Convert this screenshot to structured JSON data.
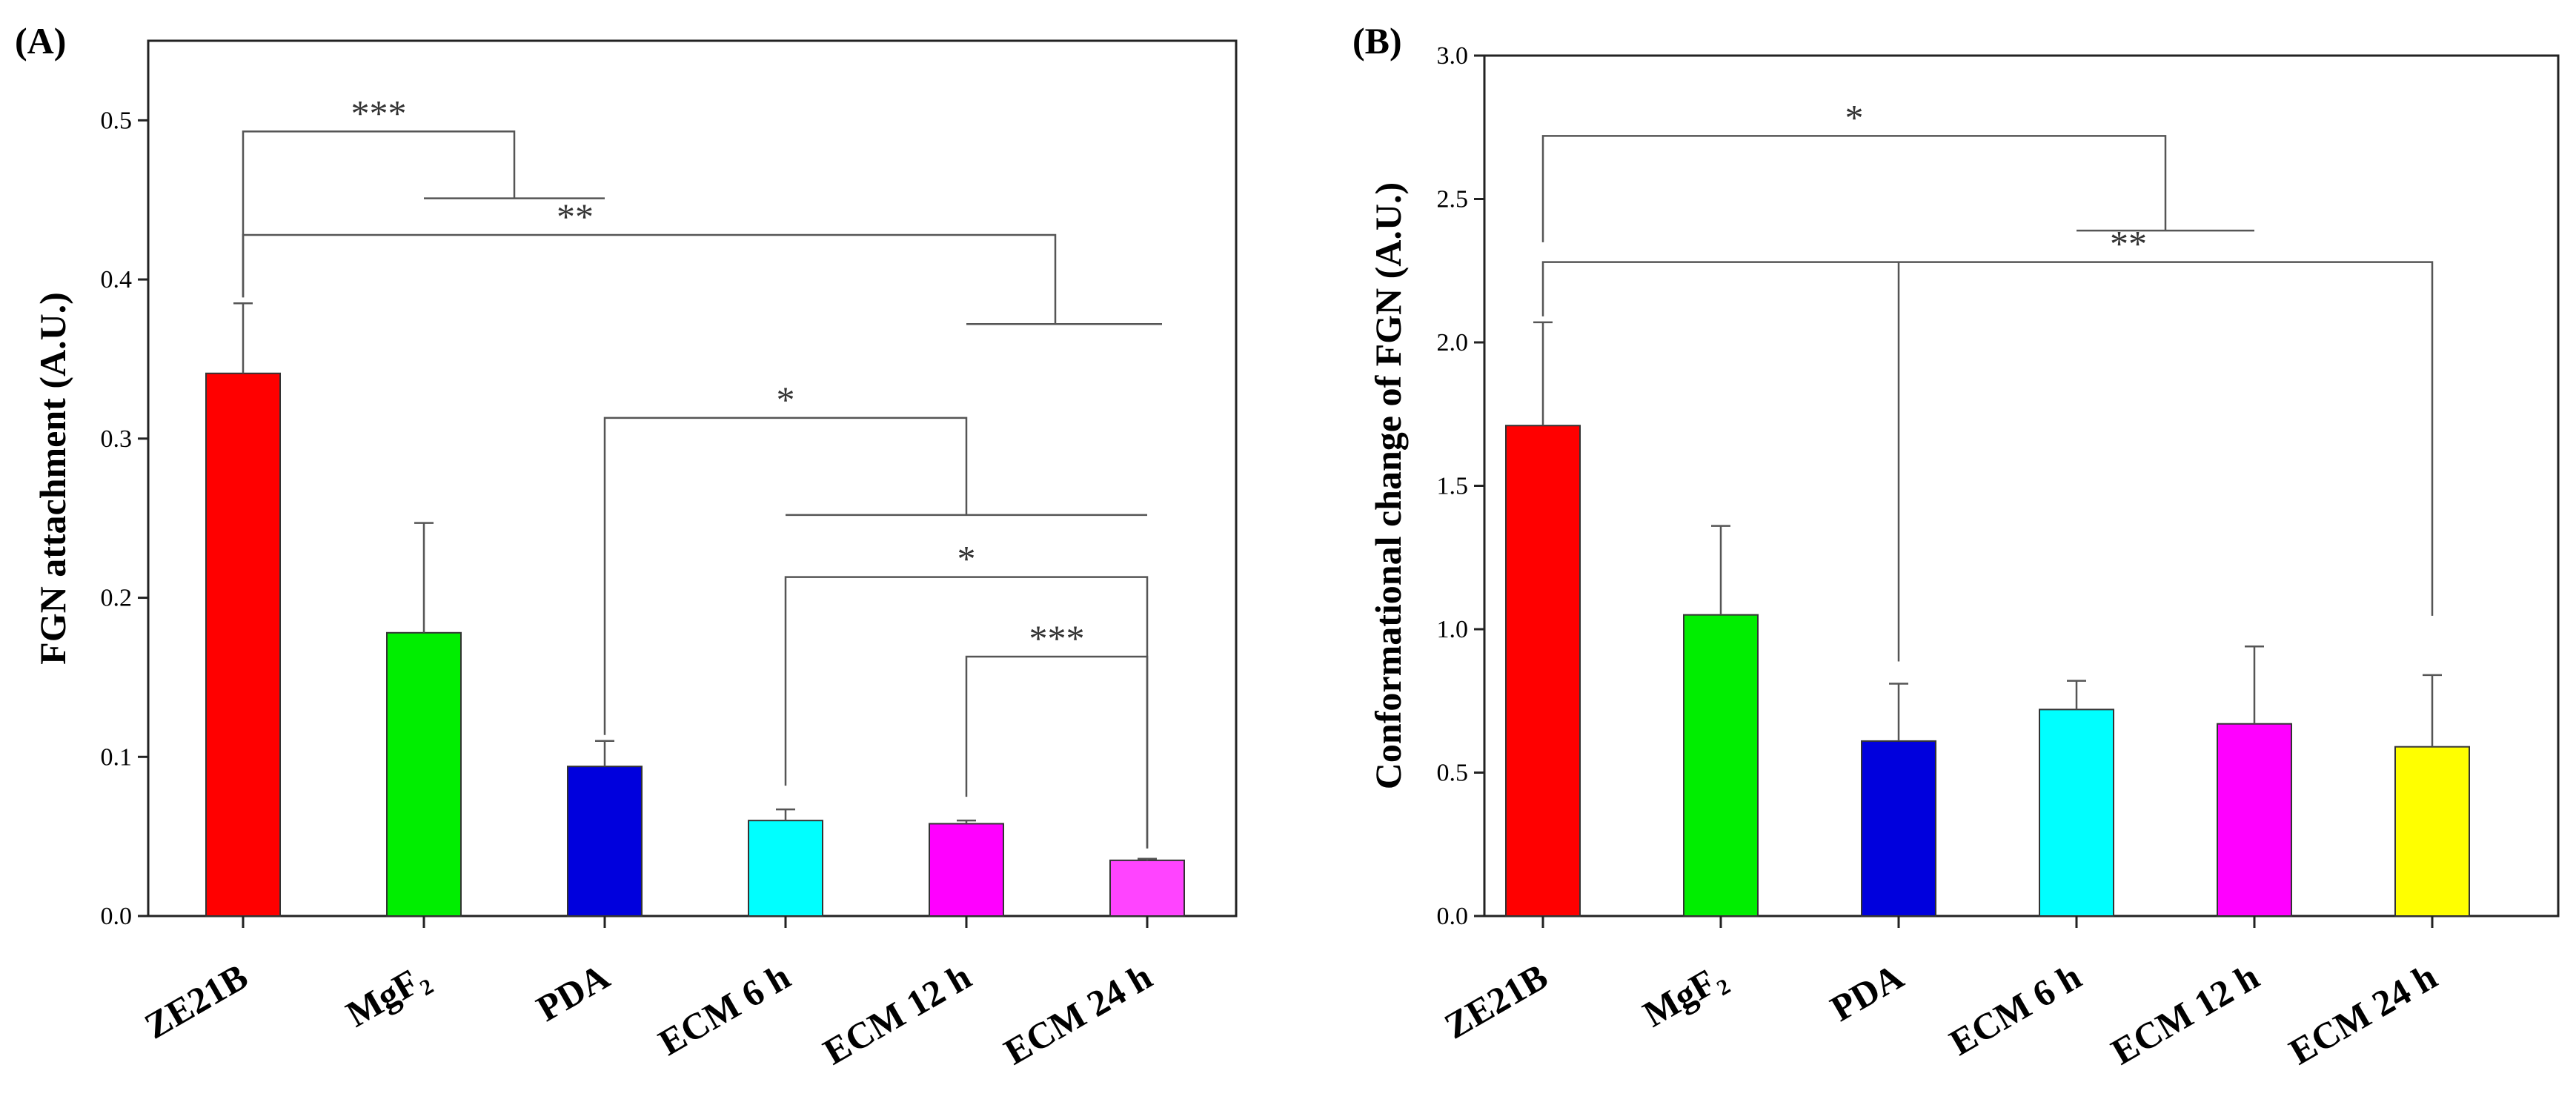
{
  "chart_data": [
    {
      "type": "bar",
      "panel_label": "(A)",
      "ylabel": "FGN attachment (A.U.)",
      "xlabel": "",
      "ylim": [
        0,
        0.55
      ],
      "yticks": [
        0.0,
        0.1,
        0.2,
        0.3,
        0.4,
        0.5
      ],
      "categories": [
        "ZE21B",
        "MgF₂",
        "PDA",
        "ECM 6 h",
        "ECM 12 h",
        "ECM 24 h"
      ],
      "values": [
        0.341,
        0.178,
        0.094,
        0.06,
        0.058,
        0.035
      ],
      "errors": [
        0.044,
        0.069,
        0.016,
        0.007,
        0.002,
        0.001
      ],
      "colors": [
        "#ff0000",
        "#00ee00",
        "#0000dd",
        "#00ffff",
        "#ff00ff",
        "#ff44ff"
      ],
      "significance": [
        {
          "label": "***",
          "from": 0,
          "to": [
            1,
            2
          ],
          "y": 0.493,
          "ybar": 0.451
        },
        {
          "label": "**",
          "from": 0,
          "to": [
            3,
            4,
            5
          ],
          "y": 0.428,
          "ybar": 0.372
        },
        {
          "label": "*",
          "from": 2,
          "to": [
            3,
            5
          ],
          "y": 0.313,
          "ybar": 0.252
        },
        {
          "label": "*",
          "from": 3,
          "to": [
            5
          ],
          "y": 0.213
        },
        {
          "label": "***",
          "from": 4,
          "to": [
            5
          ],
          "y": 0.163
        }
      ]
    },
    {
      "type": "bar",
      "panel_label": "(B)",
      "ylabel": "Conformational change of FGN (A.U.)",
      "xlabel": "",
      "ylim": [
        0,
        3.0
      ],
      "yticks": [
        0.0,
        0.5,
        1.0,
        1.5,
        2.0,
        2.5,
        3.0
      ],
      "categories": [
        "ZE21B",
        "MgF₂",
        "PDA",
        "ECM 6 h",
        "ECM 12 h",
        "ECM 24 h"
      ],
      "values": [
        1.71,
        1.05,
        0.61,
        0.72,
        0.67,
        0.59
      ],
      "errors": [
        0.36,
        0.31,
        0.2,
        0.1,
        0.27,
        0.25
      ],
      "colors": [
        "#ff0000",
        "#00ee00",
        "#0000dd",
        "#00ffff",
        "#ff00ff",
        "#ffff00"
      ],
      "significance": [
        {
          "label": "*",
          "from": 0,
          "to": [
            2,
            5
          ],
          "y": 2.72,
          "ybar": 2.39
        },
        {
          "label": "**",
          "from": 0,
          "to": [
            2,
            5
          ],
          "y": 2.28
        }
      ]
    }
  ]
}
